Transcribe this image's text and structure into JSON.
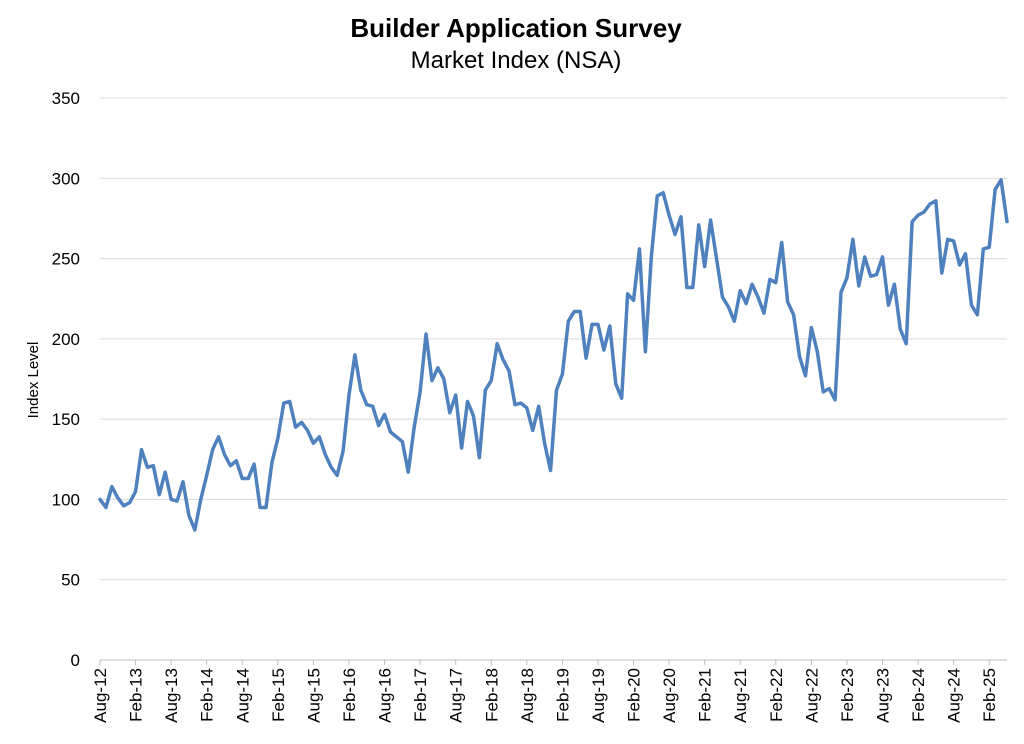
{
  "chart_data": {
    "type": "line",
    "title": "Builder Application Survey",
    "subtitle": "Market Index (NSA)",
    "xlabel": "",
    "ylabel": "Index Level",
    "ylim": [
      0,
      350
    ],
    "yticks": [
      0,
      50,
      100,
      150,
      200,
      250,
      300,
      350
    ],
    "grid": true,
    "line_color": "#4e81bd",
    "x_tick_labels": [
      "Aug-12",
      "Feb-13",
      "Aug-13",
      "Feb-14",
      "Aug-14",
      "Feb-15",
      "Aug-15",
      "Feb-16",
      "Aug-16",
      "Feb-17",
      "Aug-17",
      "Feb-18",
      "Aug-18",
      "Feb-19",
      "Aug-19",
      "Feb-20",
      "Aug-20",
      "Feb-21",
      "Aug-21",
      "Feb-22",
      "Aug-22",
      "Feb-23",
      "Aug-23",
      "Feb-24",
      "Aug-24",
      "Feb-25"
    ],
    "start_period": "Aug-12",
    "series": [
      {
        "name": "",
        "values": [
          100,
          95,
          108,
          101,
          96,
          98,
          105,
          131,
          120,
          121,
          103,
          117,
          100,
          99,
          111,
          90,
          81,
          100,
          115,
          131,
          139,
          128,
          121,
          124,
          113,
          113,
          122,
          95,
          95,
          123,
          138,
          160,
          161,
          145,
          148,
          143,
          135,
          139,
          128,
          120,
          115,
          130,
          165,
          190,
          168,
          159,
          158,
          146,
          153,
          142,
          139,
          136,
          117,
          145,
          167,
          203,
          174,
          182,
          175,
          154,
          165,
          132,
          161,
          152,
          126,
          168,
          174,
          197,
          187,
          180,
          159,
          160,
          157,
          143,
          158,
          135,
          118,
          168,
          178,
          211,
          217,
          217,
          188,
          209,
          209,
          193,
          208,
          172,
          163,
          228,
          224,
          256,
          192,
          251,
          289,
          291,
          277,
          265,
          276,
          232,
          232,
          271,
          245,
          274,
          250,
          226,
          220,
          211,
          230,
          222,
          234,
          226,
          216,
          237,
          235,
          260,
          223,
          215,
          189,
          177,
          207,
          192,
          167,
          169,
          162,
          229,
          238,
          262,
          233,
          251,
          239,
          240,
          251,
          221,
          234,
          206,
          197,
          273,
          277,
          279,
          284,
          286,
          241,
          262,
          261,
          246,
          253,
          221,
          215,
          256,
          257,
          293,
          299,
          273
        ]
      }
    ]
  }
}
